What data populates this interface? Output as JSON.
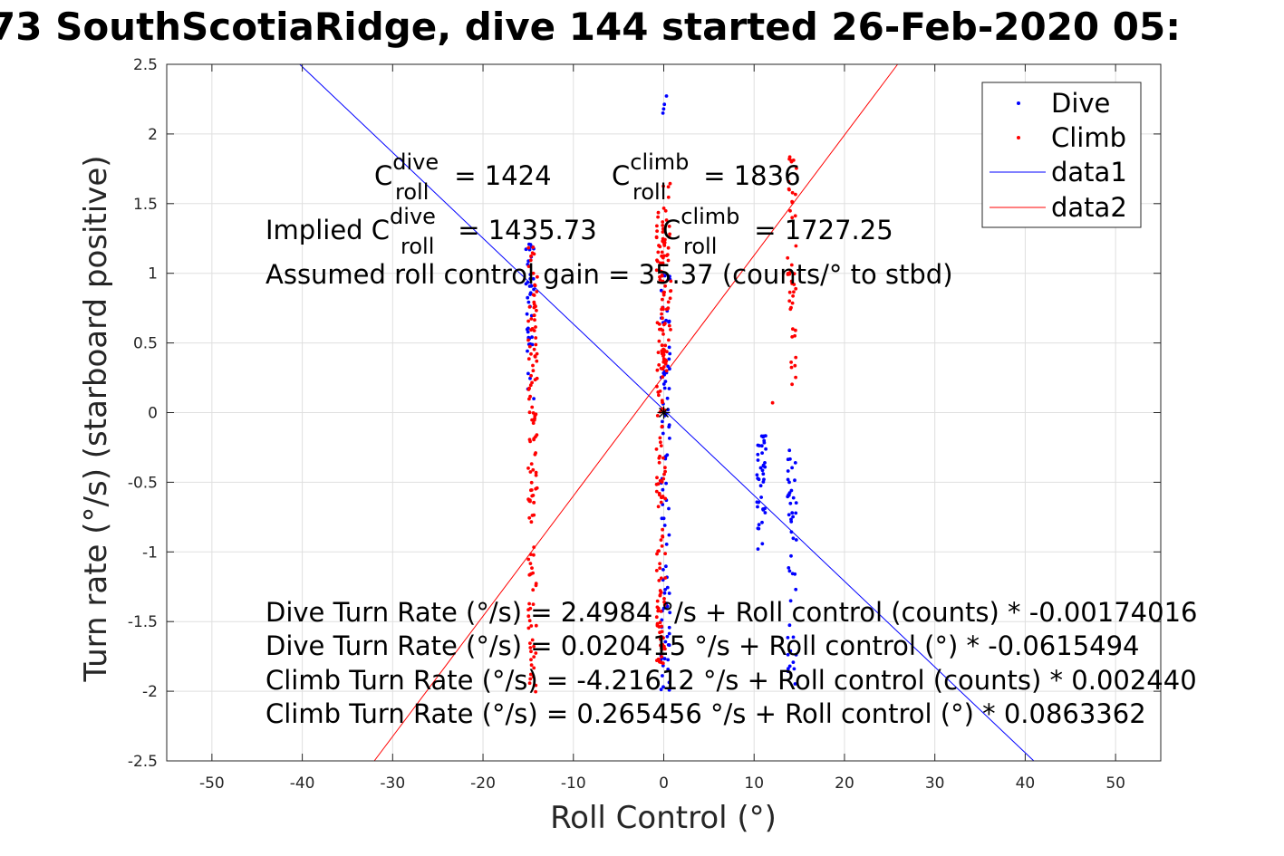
{
  "chart_data": {
    "type": "scatter",
    "title": "73 SouthScotiaRidge, dive 144 started 26-Feb-2020 05:",
    "xlabel": "Roll Control (°)",
    "ylabel": "Turn rate (°/s) (starboard positive)",
    "xlim": [
      -55,
      55
    ],
    "ylim": [
      -2.5,
      2.5
    ],
    "xticks": [
      -50,
      -40,
      -30,
      -20,
      -10,
      0,
      10,
      20,
      30,
      40,
      50
    ],
    "yticks": [
      -2.5,
      -2,
      -1.5,
      -1,
      -0.5,
      0,
      0.5,
      1,
      1.5,
      2,
      2.5
    ],
    "grid": true,
    "legend_position": "top-right",
    "colors": {
      "dive": "#0000ff",
      "climb": "#ff0000",
      "data1": "#0000ff",
      "data2": "#ff0000",
      "marker": "#000000"
    },
    "series": [
      {
        "name": "Dive",
        "kind": "points",
        "color": "#0000ff",
        "clusters": [
          {
            "x": -14.8,
            "y_min": 0.1,
            "y_max": 1.28,
            "count": 40
          },
          {
            "x": 0.2,
            "y_min": -2.0,
            "y_max": 1.0,
            "count": 90
          },
          {
            "x": 0.0,
            "y_min": 2.08,
            "y_max": 2.28,
            "count": 4
          },
          {
            "x": 10.8,
            "y_min": -0.98,
            "y_max": -0.13,
            "count": 40
          },
          {
            "x": 14.2,
            "y_min": -1.95,
            "y_max": -0.26,
            "count": 45
          }
        ]
      },
      {
        "name": "Climb",
        "kind": "points",
        "color": "#ff0000",
        "clusters": [
          {
            "x": -14.5,
            "y_min": -2.05,
            "y_max": 1.2,
            "count": 130
          },
          {
            "x": -0.3,
            "y_min": -1.8,
            "y_max": 1.5,
            "count": 160
          },
          {
            "x": 0.3,
            "y_min": 0.3,
            "y_max": 1.7,
            "count": 40
          },
          {
            "x": 14.2,
            "y_min": 0.15,
            "y_max": 1.85,
            "count": 45
          },
          {
            "x": 11.8,
            "y_min": 0.07,
            "y_max": 0.07,
            "count": 1
          }
        ]
      },
      {
        "name": "data1",
        "kind": "line",
        "color": "#0000ff",
        "intercept": 0.020415,
        "slope": -0.0615494
      },
      {
        "name": "data2",
        "kind": "line",
        "color": "#ff0000",
        "intercept": 0.265456,
        "slope": 0.0863362
      }
    ],
    "marker_point": {
      "x": 0,
      "y": 0
    },
    "annotations": {
      "c_dive_prefix": "C",
      "c_dive_sup": "dive",
      "c_dive_sub": "roll",
      "c_dive_value": " = 1424",
      "c_climb_prefix": "C",
      "c_climb_sup": "climb",
      "c_climb_sub": "roll",
      "c_climb_value": " = 1836",
      "implied_prefix": "Implied C",
      "implied_dive_sup": "dive",
      "implied_dive_sub": "roll",
      "implied_dive_value": " = 1435.73",
      "implied_climb_prefix": "C",
      "implied_climb_sup": "climb",
      "implied_climb_sub": "roll",
      "implied_climb_value": " = 1727.25",
      "gain_text": "Assumed roll control gain = 35.37 (counts/° to stbd)",
      "eq1": "Dive Turn Rate (°/s) = 2.4984 °/s + Roll control (counts) * -0.00174016",
      "eq2": "Dive Turn Rate (°/s) = 0.020415 °/s + Roll control (°) * -0.0615494",
      "eq3": "Climb Turn Rate (°/s) = -4.21612 °/s + Roll control (counts) * 0.002440",
      "eq4": "Climb Turn Rate (°/s) = 0.265456 °/s + Roll control (°) * 0.0863362"
    }
  }
}
